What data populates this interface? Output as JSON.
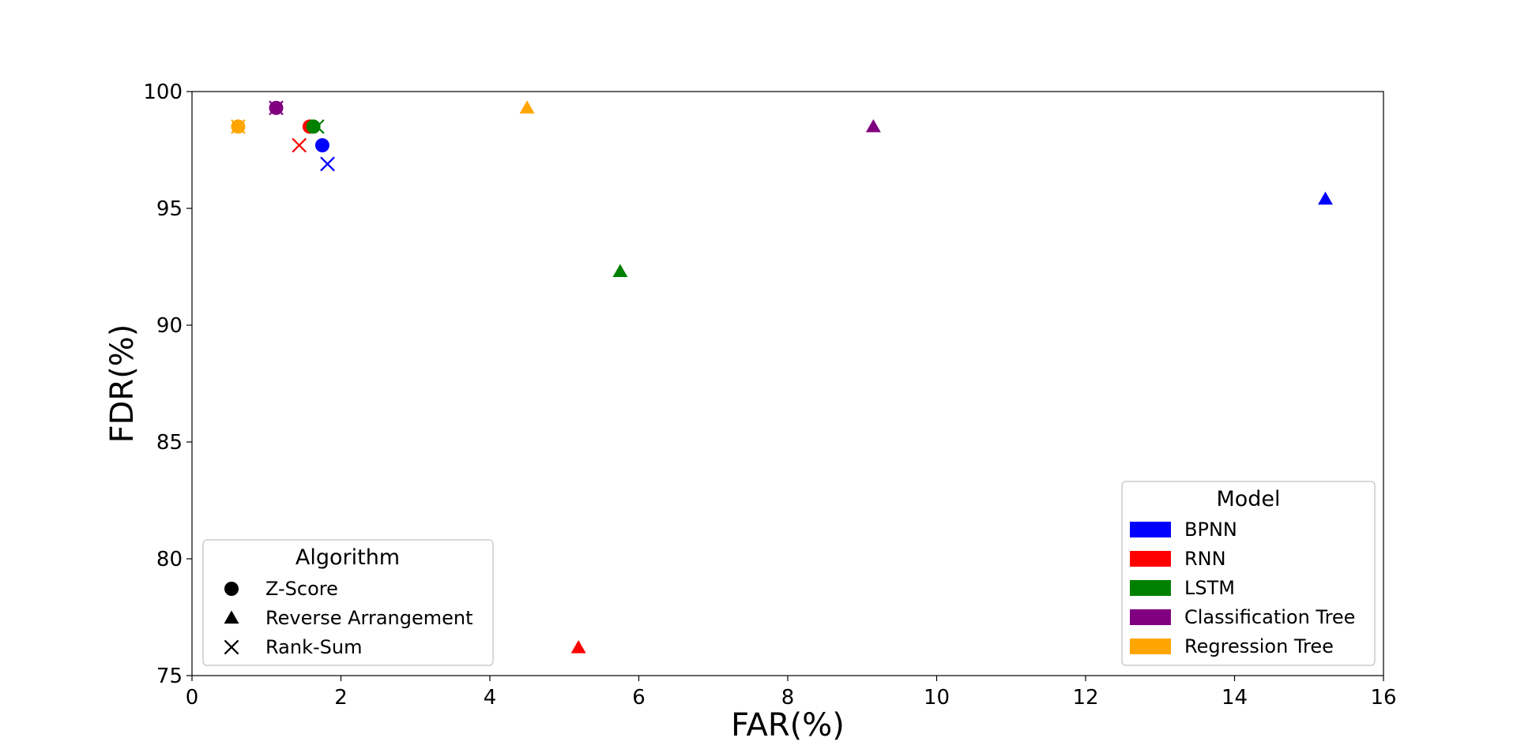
{
  "chart_data": {
    "type": "scatter",
    "xlabel": "FAR(%)",
    "ylabel": "FDR(%)",
    "xlim": [
      0,
      16
    ],
    "ylim": [
      75,
      100
    ],
    "xticks": [
      0,
      2,
      4,
      6,
      8,
      10,
      12,
      14,
      16
    ],
    "yticks": [
      75,
      80,
      85,
      90,
      95,
      100
    ],
    "grid": false,
    "colors": {
      "BPNN": "#0000ff",
      "RNN": "#ff0000",
      "LSTM": "#008000",
      "Classification Tree": "#800080",
      "Regression Tree": "#ffa500"
    },
    "algorithm_legend": {
      "title": "Algorithm",
      "placement": "lower-left",
      "items": [
        {
          "label": "Z-Score",
          "marker": "circle"
        },
        {
          "label": "Reverse Arrangement",
          "marker": "triangle"
        },
        {
          "label": "Rank-Sum",
          "marker": "x"
        }
      ]
    },
    "model_legend": {
      "title": "Model",
      "placement": "lower-right",
      "items": [
        "BPNN",
        "RNN",
        "LSTM",
        "Classification Tree",
        "Regression Tree"
      ]
    },
    "points": [
      {
        "model": "BPNN",
        "algorithm": "Z-Score",
        "x": 1.75,
        "y": 97.7
      },
      {
        "model": "BPNN",
        "algorithm": "Reverse Arrangement",
        "x": 15.22,
        "y": 95.4
      },
      {
        "model": "BPNN",
        "algorithm": "Rank-Sum",
        "x": 1.82,
        "y": 96.9
      },
      {
        "model": "RNN",
        "algorithm": "Z-Score",
        "x": 1.58,
        "y": 98.5
      },
      {
        "model": "RNN",
        "algorithm": "Reverse Arrangement",
        "x": 5.19,
        "y": 76.2
      },
      {
        "model": "RNN",
        "algorithm": "Rank-Sum",
        "x": 1.44,
        "y": 97.7
      },
      {
        "model": "LSTM",
        "algorithm": "Z-Score",
        "x": 1.63,
        "y": 98.5
      },
      {
        "model": "LSTM",
        "algorithm": "Reverse Arrangement",
        "x": 5.75,
        "y": 92.3
      },
      {
        "model": "LSTM",
        "algorithm": "Rank-Sum",
        "x": 1.68,
        "y": 98.5
      },
      {
        "model": "Classification Tree",
        "algorithm": "Z-Score",
        "x": 1.13,
        "y": 99.3
      },
      {
        "model": "Classification Tree",
        "algorithm": "Reverse Arrangement",
        "x": 9.15,
        "y": 98.5
      },
      {
        "model": "Classification Tree",
        "algorithm": "Rank-Sum",
        "x": 1.13,
        "y": 99.3
      },
      {
        "model": "Regression Tree",
        "algorithm": "Z-Score",
        "x": 0.62,
        "y": 98.5
      },
      {
        "model": "Regression Tree",
        "algorithm": "Reverse Arrangement",
        "x": 4.5,
        "y": 99.3
      },
      {
        "model": "Regression Tree",
        "algorithm": "Rank-Sum",
        "x": 0.62,
        "y": 98.5
      }
    ]
  }
}
